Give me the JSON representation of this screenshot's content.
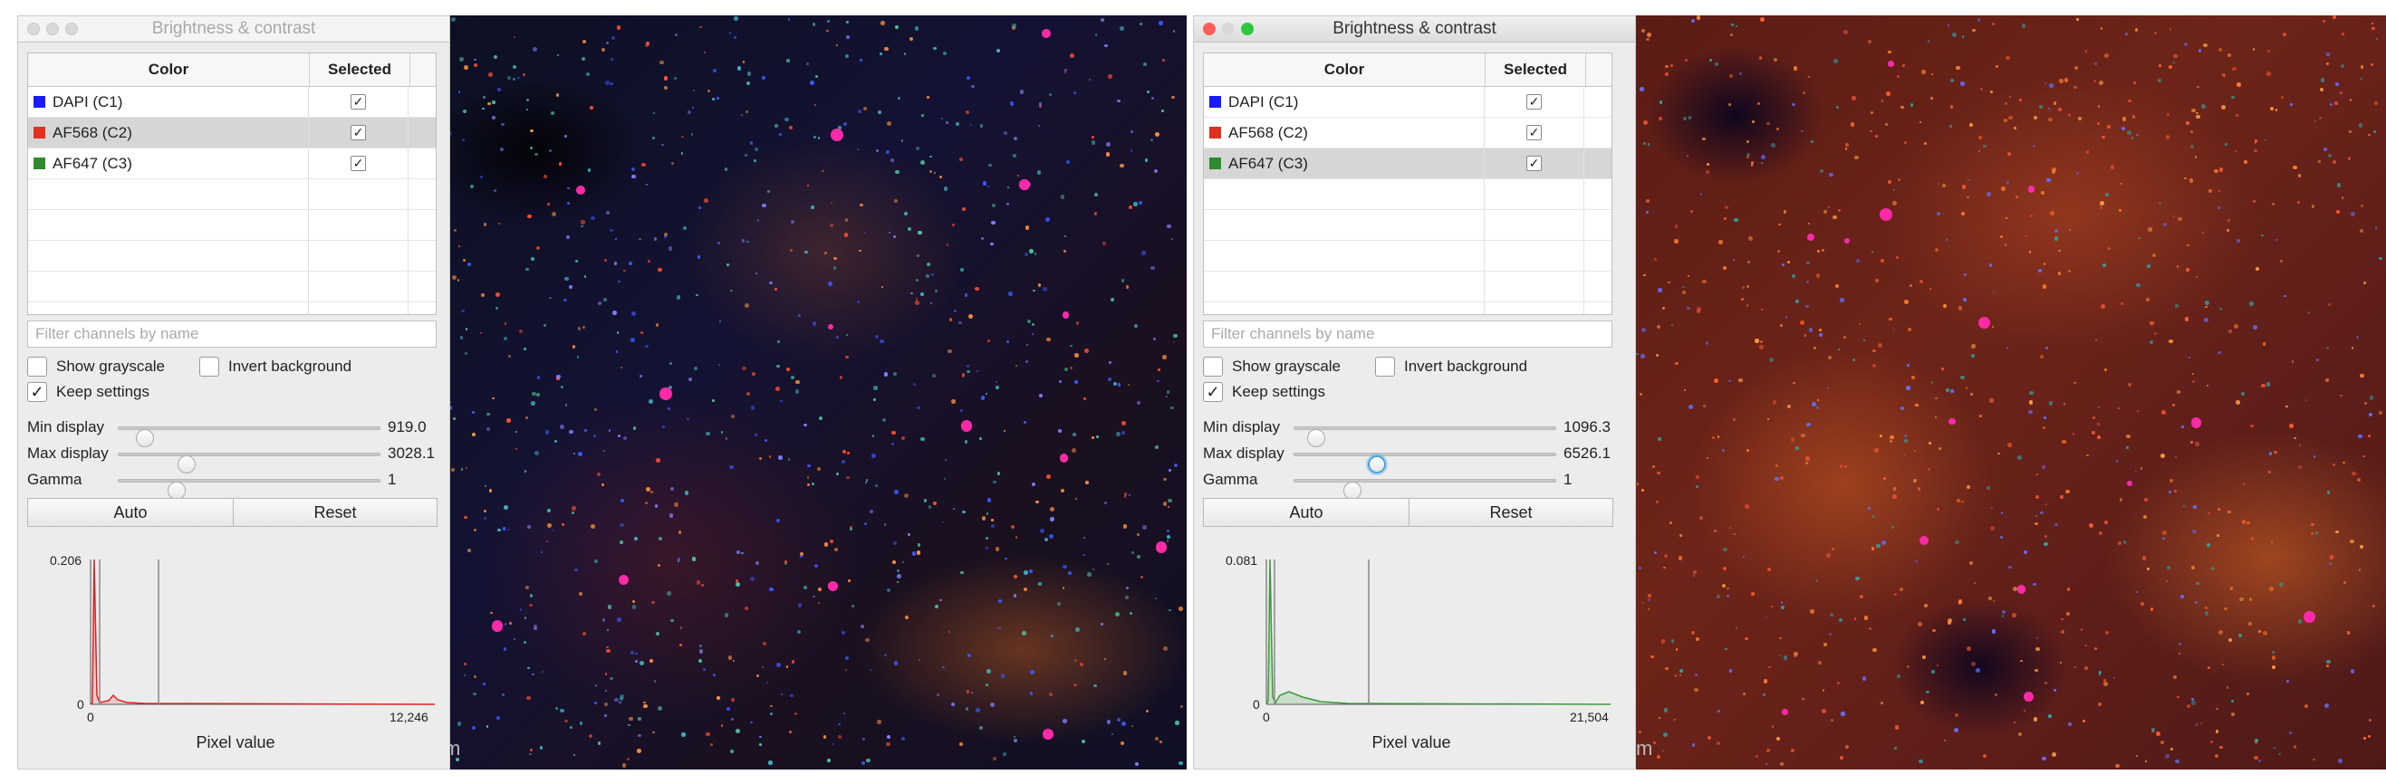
{
  "windows": [
    {
      "title": "Brightness & contrast",
      "table": {
        "headers": [
          "Color",
          "Selected"
        ],
        "rows": [
          {
            "name": "DAPI (C1)",
            "color": "#1a1aff",
            "selected": true,
            "highlighted": false
          },
          {
            "name": "AF568 (C2)",
            "color": "#e03020",
            "selected": true,
            "highlighted": true
          },
          {
            "name": "AF647 (C3)",
            "color": "#2e8b2e",
            "selected": true,
            "highlighted": false
          }
        ]
      },
      "filter_placeholder": "Filter channels by name",
      "options": {
        "show_grayscale": "Show grayscale",
        "invert_background": "Invert background",
        "keep_settings": "Keep settings"
      },
      "sliders": {
        "min": {
          "label": "Min display",
          "value": "919.0",
          "position": 0.07
        },
        "max": {
          "label": "Max display",
          "value": "3028.1",
          "position": 0.24
        },
        "gamma": {
          "label": "Gamma",
          "value": "1",
          "position": 0.2
        }
      },
      "buttons": {
        "auto": "Auto",
        "reset": "Reset"
      },
      "histogram": {
        "y_max_label": "0.206",
        "y_min_label": "0",
        "x_min_label": "0",
        "x_max_label": "12,246",
        "x_axis_label": "Pixel value",
        "color": "#e02020"
      }
    },
    {
      "title": "Brightness & contrast",
      "table": {
        "headers": [
          "Color",
          "Selected"
        ],
        "rows": [
          {
            "name": "DAPI (C1)",
            "color": "#1a1aff",
            "selected": true,
            "highlighted": false
          },
          {
            "name": "AF568 (C2)",
            "color": "#e03020",
            "selected": true,
            "highlighted": false
          },
          {
            "name": "AF647 (C3)",
            "color": "#2e8b2e",
            "selected": true,
            "highlighted": true
          }
        ]
      },
      "filter_placeholder": "Filter channels by name",
      "options": {
        "show_grayscale": "Show grayscale",
        "invert_background": "Invert background",
        "keep_settings": "Keep settings"
      },
      "sliders": {
        "min": {
          "label": "Min display",
          "value": "1096.3",
          "position": 0.05
        },
        "max": {
          "label": "Max display",
          "value": "6526.1",
          "position": 0.3
        },
        "gamma": {
          "label": "Gamma",
          "value": "1",
          "position": 0.2
        }
      },
      "buttons": {
        "auto": "Auto",
        "reset": "Reset"
      },
      "histogram": {
        "y_max_label": "0.081",
        "y_min_label": "0",
        "x_min_label": "0",
        "x_max_label": "21,504",
        "x_axis_label": "Pixel value",
        "color": "#3a9a3a"
      }
    }
  ],
  "scale_bar_text": [
    "m",
    "m"
  ]
}
